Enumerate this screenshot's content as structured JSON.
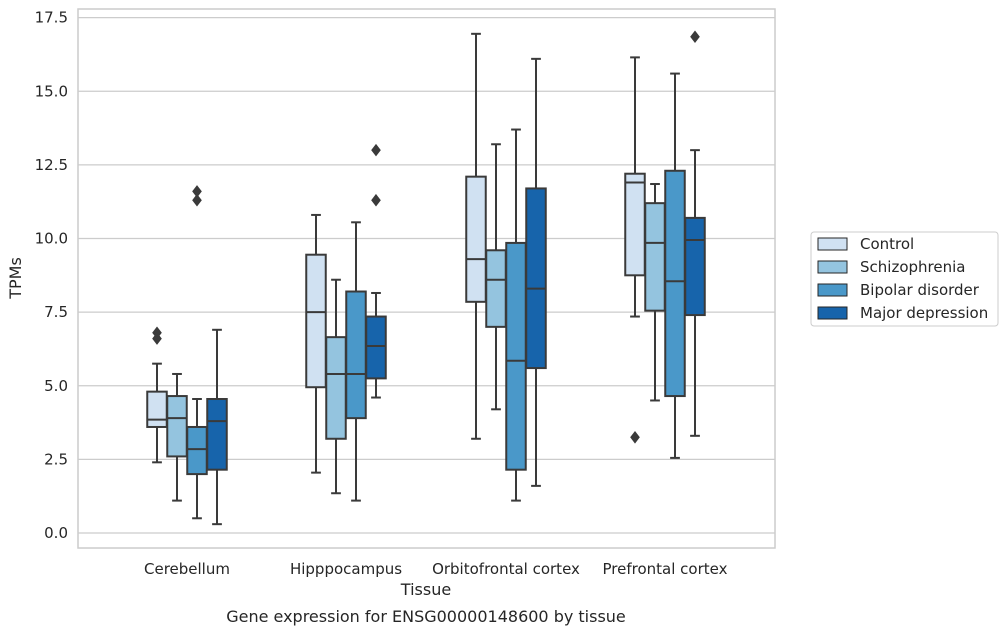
{
  "chart_data": {
    "type": "box",
    "title": "",
    "caption": "Gene expression for ENSG00000148600 by tissue",
    "xlabel": "Tissue",
    "ylabel": "TPMs",
    "ylim": [
      -0.5,
      17.8
    ],
    "yticks": [
      "0.0",
      "2.5",
      "5.0",
      "7.5",
      "10.0",
      "12.5",
      "15.0",
      "17.5"
    ],
    "grid": "horizontal",
    "legend_position": "right",
    "categories": [
      "Cerebellum",
      "Hipppocampus",
      "Orbitofrontal cortex",
      "Prefrontal cortex"
    ],
    "series": [
      {
        "name": "Control",
        "color": "#d0e1f2",
        "boxes": [
          {
            "whislo": 2.4,
            "q1": 3.6,
            "med": 3.85,
            "q3": 4.8,
            "whishi": 5.75,
            "fliers": [
              6.6,
              6.8
            ]
          },
          {
            "whislo": 2.05,
            "q1": 4.95,
            "med": 7.5,
            "q3": 9.45,
            "whishi": 10.8,
            "fliers": []
          },
          {
            "whislo": 3.2,
            "q1": 7.85,
            "med": 9.3,
            "q3": 12.1,
            "whishi": 16.95,
            "fliers": []
          },
          {
            "whislo": 7.35,
            "q1": 8.75,
            "med": 11.9,
            "q3": 12.2,
            "whishi": 16.15,
            "fliers": [
              3.25
            ]
          }
        ]
      },
      {
        "name": "Schizophrenia",
        "color": "#94c4df",
        "boxes": [
          {
            "whislo": 1.1,
            "q1": 2.6,
            "med": 3.9,
            "q3": 4.65,
            "whishi": 5.4,
            "fliers": []
          },
          {
            "whislo": 1.35,
            "q1": 3.2,
            "med": 5.4,
            "q3": 6.65,
            "whishi": 8.6,
            "fliers": []
          },
          {
            "whislo": 4.2,
            "q1": 7.0,
            "med": 8.6,
            "q3": 9.6,
            "whishi": 13.2,
            "fliers": []
          },
          {
            "whislo": 4.5,
            "q1": 7.55,
            "med": 9.85,
            "q3": 11.2,
            "whishi": 11.85,
            "fliers": []
          }
        ]
      },
      {
        "name": "Bipolar disorder",
        "color": "#4a98c9",
        "boxes": [
          {
            "whislo": 0.5,
            "q1": 2.0,
            "med": 2.85,
            "q3": 3.6,
            "whishi": 4.55,
            "fliers": [
              11.3,
              11.6
            ]
          },
          {
            "whislo": 1.1,
            "q1": 3.9,
            "med": 5.4,
            "q3": 8.2,
            "whishi": 10.55,
            "fliers": []
          },
          {
            "whislo": 1.1,
            "q1": 2.15,
            "med": 5.85,
            "q3": 9.85,
            "whishi": 13.7,
            "fliers": []
          },
          {
            "whislo": 2.55,
            "q1": 4.65,
            "med": 8.55,
            "q3": 12.3,
            "whishi": 15.6,
            "fliers": []
          }
        ]
      },
      {
        "name": "Major depression",
        "color": "#1764ab",
        "boxes": [
          {
            "whislo": 0.3,
            "q1": 2.15,
            "med": 3.8,
            "q3": 4.55,
            "whishi": 6.9,
            "fliers": []
          },
          {
            "whislo": 4.6,
            "q1": 5.25,
            "med": 6.35,
            "q3": 7.35,
            "whishi": 8.15,
            "fliers": [
              11.3,
              13.0
            ]
          },
          {
            "whislo": 1.6,
            "q1": 5.6,
            "med": 8.3,
            "q3": 11.7,
            "whishi": 16.1,
            "fliers": []
          },
          {
            "whislo": 3.3,
            "q1": 7.4,
            "med": 9.95,
            "q3": 10.7,
            "whishi": 13.0,
            "fliers": [
              16.85
            ]
          }
        ]
      }
    ]
  }
}
